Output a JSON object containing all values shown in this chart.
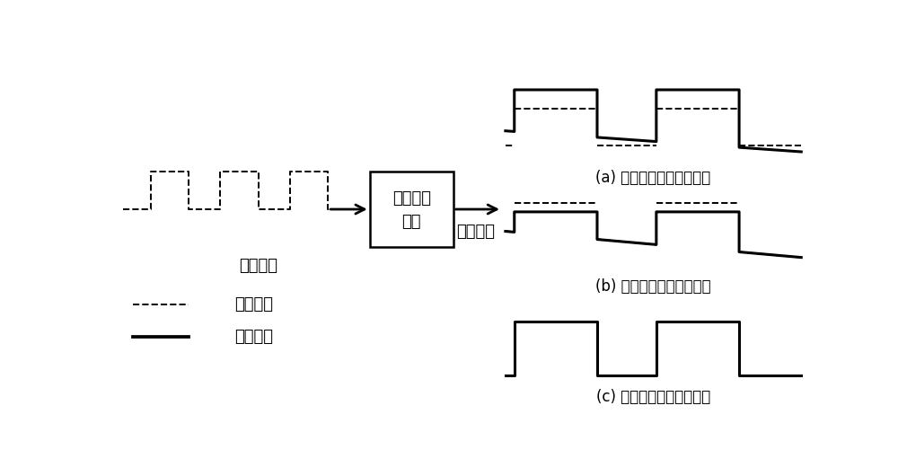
{
  "bg_color": "#ffffff",
  "box_label_line1": "阻抗变换",
  "box_label_line2": "电路",
  "input_label": "信号输入",
  "output_label": "信号输出",
  "legend_dashed": "输入波形",
  "legend_solid": "输出波形",
  "caption_a": "(a) 交流增益大于直流增益",
  "caption_b": "(b) 交流增益小于直流增益",
  "caption_c": "(c) 交流增益等于直流增益",
  "lw_solid": 2.2,
  "lw_dashed": 1.4
}
